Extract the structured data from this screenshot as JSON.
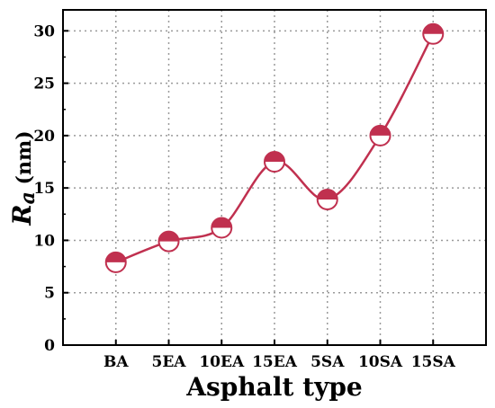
{
  "chart_data": {
    "type": "line",
    "categories": [
      "BA",
      "5EA",
      "10EA",
      "15EA",
      "5SA",
      "10SA",
      "15SA"
    ],
    "series": [
      {
        "values": [
          7.9,
          9.9,
          11.2,
          17.5,
          13.9,
          20.0,
          29.7
        ]
      }
    ],
    "xlabel": "Asphalt type",
    "ylabel_main": "R",
    "ylabel_sub": "a",
    "ylabel_unit": " (nm)",
    "ylim": [
      0,
      32
    ],
    "yticks": [
      0,
      5,
      10,
      15,
      20,
      25,
      30
    ],
    "grid": true,
    "marker": "half-filled circle",
    "line_style": "smooth",
    "color": "#c0304f"
  }
}
